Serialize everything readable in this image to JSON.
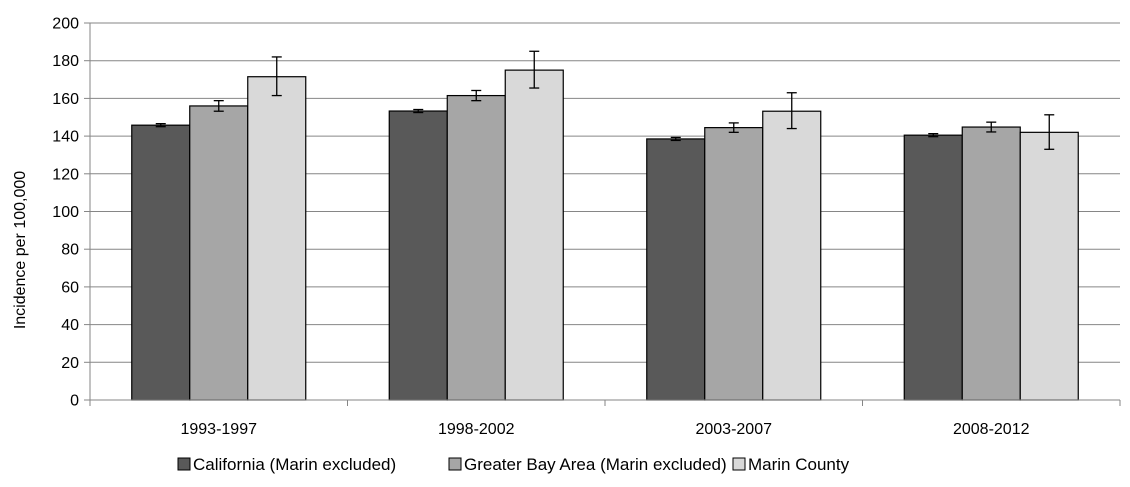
{
  "chart_data": {
    "type": "bar",
    "title": "",
    "xlabel": "",
    "ylabel": "Incidence per 100,000",
    "ylim": [
      0,
      200
    ],
    "yticks": [
      0,
      20,
      40,
      60,
      80,
      100,
      120,
      140,
      160,
      180,
      200
    ],
    "grid": true,
    "legend_position": "bottom",
    "categories": [
      "1993-1997",
      "1998-2002",
      "2003-2007",
      "2008-2012"
    ],
    "series": [
      {
        "name": "California (Marin excluded)",
        "color": "#595959",
        "values": [
          145.8,
          153.3,
          138.5,
          140.5
        ],
        "error_low": [
          145.0,
          152.5,
          137.7,
          139.7
        ],
        "error_high": [
          146.6,
          154.1,
          139.3,
          141.3
        ]
      },
      {
        "name": "Greater Bay Area (Marin excluded)",
        "color": "#a6a6a6",
        "values": [
          156.0,
          161.5,
          144.5,
          144.8
        ],
        "error_low": [
          153.2,
          158.8,
          142.0,
          142.2
        ],
        "error_high": [
          158.8,
          164.2,
          147.0,
          147.4
        ]
      },
      {
        "name": "Marin County",
        "color": "#d9d9d9",
        "values": [
          171.5,
          175.0,
          153.2,
          142.0
        ],
        "error_low": [
          161.5,
          165.5,
          144.0,
          133.0
        ],
        "error_high": [
          182.0,
          185.0,
          163.0,
          151.3
        ]
      }
    ]
  }
}
